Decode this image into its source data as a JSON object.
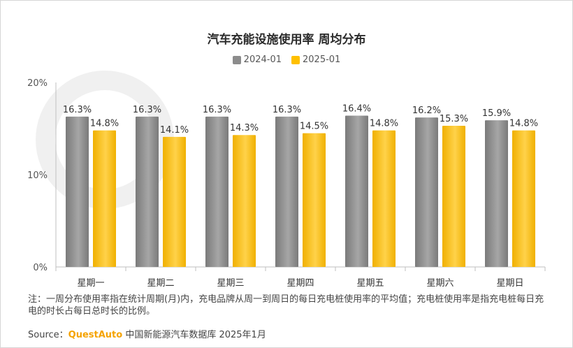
{
  "chart_data": {
    "type": "bar",
    "title": "汽车充能设施使用率 周均分布",
    "categories": [
      "星期一",
      "星期二",
      "星期三",
      "星期四",
      "星期五",
      "星期六",
      "星期日"
    ],
    "series": [
      {
        "name": "2024-01",
        "values": [
          16.3,
          16.3,
          16.3,
          16.3,
          16.4,
          16.2,
          15.9
        ],
        "color": "#8c8c8c"
      },
      {
        "name": "2025-01",
        "values": [
          14.8,
          14.1,
          14.3,
          14.5,
          14.8,
          15.3,
          14.8
        ],
        "color": "#ffc000"
      }
    ],
    "value_format": "%",
    "y_ticks": [
      "0%",
      "10%",
      "20%"
    ],
    "ylim": [
      0,
      20
    ],
    "grid": false,
    "legend_position": "top-center"
  },
  "note": "注：一周分布使用率指在统计周期(月)内，充电品牌从周一到周日的每日充电桩使用率的平均值；充电桩使用率是指充电桩每日充电的时长占每日总时长的比例。",
  "source": {
    "label": "Source：",
    "brand": "QuestAuto",
    "text": " 中国新能源汽车数据库 2025年1月"
  }
}
